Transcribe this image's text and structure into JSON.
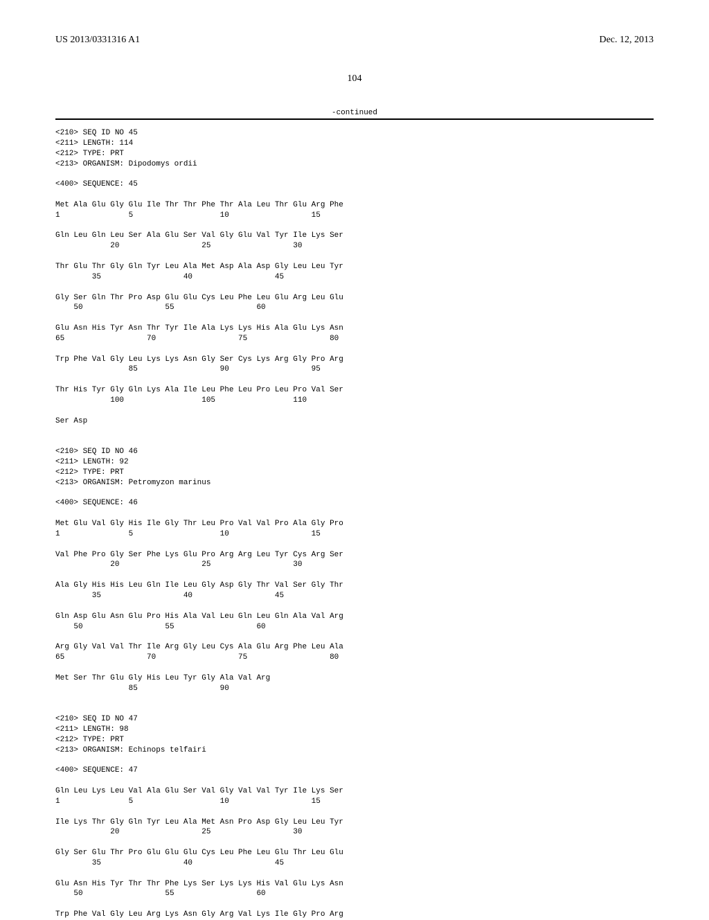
{
  "header": {
    "pub_number": "US 2013/0331316 A1",
    "pub_date": "Dec. 12, 2013"
  },
  "page_number": "104",
  "continued_label": "-continued",
  "body_pre": "<210> SEQ ID NO 45\n<211> LENGTH: 114\n<212> TYPE: PRT\n<213> ORGANISM: Dipodomys ordii\n\n<400> SEQUENCE: 45\n\nMet Ala Glu Gly Glu Ile Thr Thr Phe Thr Ala Leu Thr Glu Arg Phe\n1               5                   10                  15\n\nGln Leu Gln Leu Ser Ala Glu Ser Val Gly Glu Val Tyr Ile Lys Ser\n            20                  25                  30\n\nThr Glu Thr Gly Gln Tyr Leu Ala Met Asp Ala Asp Gly Leu Leu Tyr\n        35                  40                  45\n\nGly Ser Gln Thr Pro Asp Glu Glu Cys Leu Phe Leu Glu Arg Leu Glu\n    50                  55                  60\n\nGlu Asn His Tyr Asn Thr Tyr Ile Ala Lys Lys His Ala Glu Lys Asn\n65                  70                  75                  80\n\nTrp Phe Val Gly Leu Lys Lys Asn Gly Ser Cys Lys Arg Gly Pro Arg\n                85                  90                  95\n\nThr His Tyr Gly Gln Lys Ala Ile Leu Phe Leu Pro Leu Pro Val Ser\n            100                 105                 110\n\nSer Asp\n\n\n<210> SEQ ID NO 46\n<211> LENGTH: 92\n<212> TYPE: PRT\n<213> ORGANISM: Petromyzon marinus\n\n<400> SEQUENCE: 46\n\nMet Glu Val Gly His Ile Gly Thr Leu Pro Val Val Pro Ala Gly Pro\n1               5                   10                  15\n\nVal Phe Pro Gly Ser Phe Lys Glu Pro Arg Arg Leu Tyr Cys Arg Ser\n            20                  25                  30\n\nAla Gly His His Leu Gln Ile Leu Gly Asp Gly Thr Val Ser Gly Thr\n        35                  40                  45\n\nGln Asp Glu Asn Glu Pro His Ala Val Leu Gln Leu Gln Ala Val Arg\n    50                  55                  60\n\nArg Gly Val Val Thr Ile Arg Gly Leu Cys Ala Glu Arg Phe Leu Ala\n65                  70                  75                  80\n\nMet Ser Thr Glu Gly His Leu Tyr Gly Ala Val Arg\n                85                  90\n\n\n<210> SEQ ID NO 47\n<211> LENGTH: 98\n<212> TYPE: PRT\n<213> ORGANISM: Echinops telfairi\n\n<400> SEQUENCE: 47\n\nGln Leu Lys Leu Val Ala Glu Ser Val Gly Val Val Tyr Ile Lys Ser\n1               5                   10                  15\n\nIle Lys Thr Gly Gln Tyr Leu Ala Met Asn Pro Asp Gly Leu Leu Tyr\n            20                  25                  30\n\nGly Ser Glu Thr Pro Glu Glu Glu Cys Leu Phe Leu Glu Thr Leu Glu\n        35                  40                  45\n\nGlu Asn His Tyr Thr Thr Phe Lys Ser Lys Lys His Val Glu Lys Asn\n    50                  55                  60\n\nTrp Phe Val Gly Leu Arg Lys Asn Gly Arg Val Lys Ile Gly Pro Arg"
}
